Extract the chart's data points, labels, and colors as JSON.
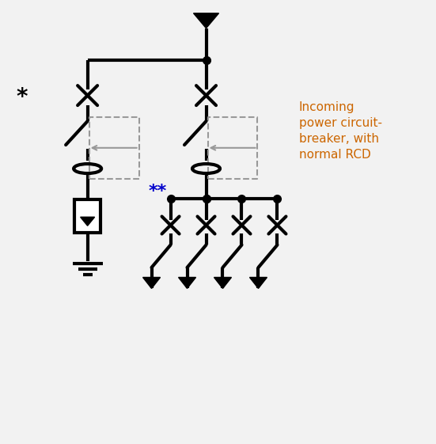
{
  "bg_color": "#f2f2f2",
  "line_color": "#000000",
  "lw": 3.0,
  "lw_thin": 1.5,
  "dashed_color": "#999999",
  "incoming_label": "Incoming\npower circuit-\nbreaker, with\nnormal RCD",
  "incoming_label_color": "#cc6600",
  "star_label": "*",
  "star2_label": "**",
  "star2_color": "#0000cc",
  "figsize": [
    5.51,
    5.61
  ],
  "dpi": 100,
  "xlim": [
    0,
    11
  ],
  "ylim": [
    0,
    11
  ]
}
